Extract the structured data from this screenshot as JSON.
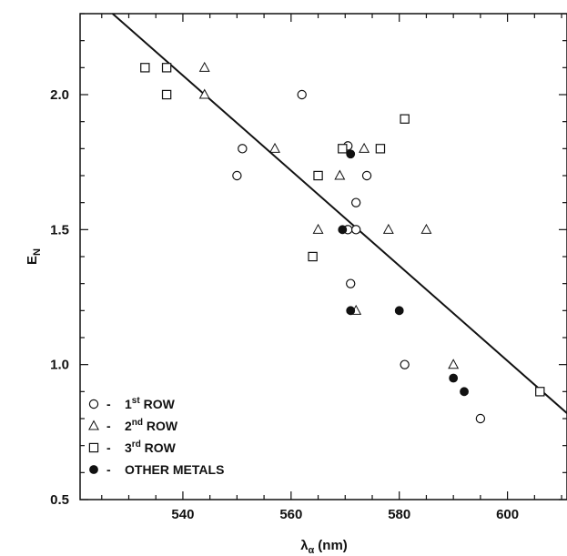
{
  "chart_data": {
    "type": "scatter",
    "xlabel_main": "λ",
    "xlabel_sub": "α",
    "xlabel_unit": "(nm)",
    "ylabel_main": "E",
    "ylabel_sub": "N",
    "xlim": [
      521,
      611
    ],
    "ylim": [
      0.5,
      2.3
    ],
    "x_ticks": [
      540,
      560,
      580,
      600
    ],
    "x_tick_labels": [
      "540",
      "560",
      "580",
      "600"
    ],
    "y_ticks": [
      0.5,
      1.0,
      1.5,
      2.0
    ],
    "y_tick_labels": [
      "0.5",
      "1.0",
      "1.5",
      "2.0"
    ],
    "grid": false,
    "legend_placement": "bottom-left",
    "series": [
      {
        "name": "1st ROW",
        "name_parts": [
          "1",
          "st",
          " ROW"
        ],
        "marker": "circle-open",
        "points": [
          [
            562,
            2.0
          ],
          [
            551,
            1.8
          ],
          [
            550,
            1.7
          ],
          [
            570.5,
            1.81
          ],
          [
            574,
            1.7
          ],
          [
            572,
            1.6
          ],
          [
            570.5,
            1.5
          ],
          [
            572,
            1.5
          ],
          [
            571,
            1.3
          ],
          [
            581,
            1.0
          ],
          [
            595,
            0.8
          ]
        ]
      },
      {
        "name": "2nd ROW",
        "name_parts": [
          "2",
          "nd",
          " ROW"
        ],
        "marker": "triangle-open",
        "points": [
          [
            544,
            2.1
          ],
          [
            544,
            2.0
          ],
          [
            557,
            1.8
          ],
          [
            569,
            1.7
          ],
          [
            573.5,
            1.8
          ],
          [
            565,
            1.5
          ],
          [
            578,
            1.5
          ],
          [
            585,
            1.5
          ],
          [
            572,
            1.2
          ],
          [
            590,
            1.0
          ]
        ]
      },
      {
        "name": "3rd ROW",
        "name_parts": [
          "3",
          "rd",
          " ROW"
        ],
        "marker": "square-open",
        "points": [
          [
            533,
            2.1
          ],
          [
            537,
            2.1
          ],
          [
            537,
            2.0
          ],
          [
            569.5,
            1.8
          ],
          [
            576.5,
            1.8
          ],
          [
            581,
            1.91
          ],
          [
            565,
            1.7
          ],
          [
            564,
            1.4
          ],
          [
            606,
            0.9
          ]
        ]
      },
      {
        "name": "OTHER METALS",
        "name_parts": [
          "",
          "",
          "OTHER METALS"
        ],
        "marker": "circle-filled",
        "points": [
          [
            571,
            1.78
          ],
          [
            569.5,
            1.5
          ],
          [
            571,
            1.2
          ],
          [
            580,
            1.2
          ],
          [
            590,
            0.95
          ],
          [
            592,
            0.9
          ]
        ]
      }
    ],
    "fit_line": {
      "x": [
        527,
        611
      ],
      "y": [
        2.3,
        0.82
      ]
    },
    "legend_dash": "-"
  }
}
